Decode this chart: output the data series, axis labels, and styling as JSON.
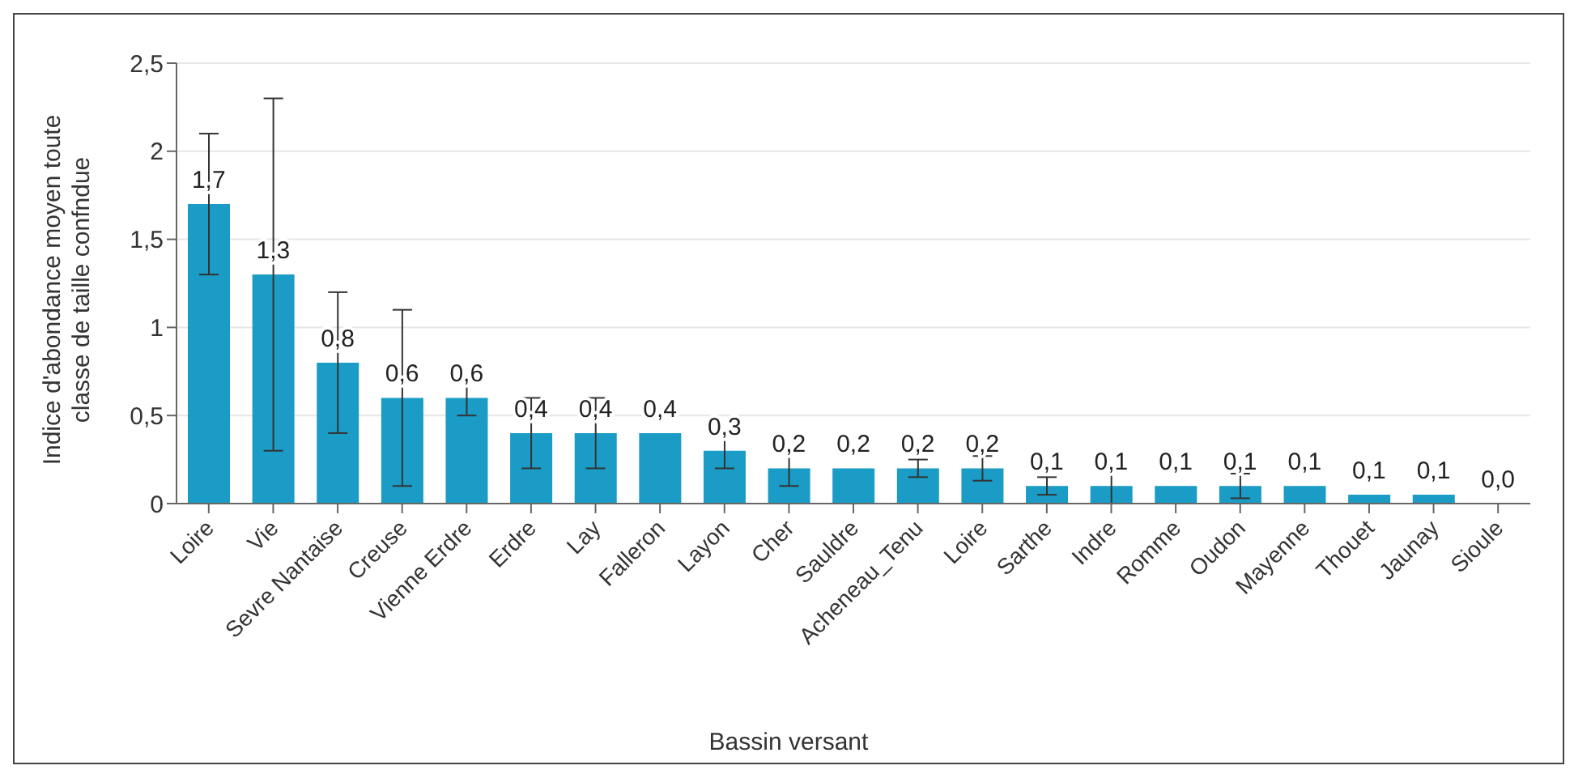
{
  "chart_data": {
    "type": "bar",
    "xlabel": "Bassin versant",
    "ylabel": "Indice d'abondance moyen toute classe de taille confndue",
    "categories": [
      "Loire",
      "Vie",
      "Sevre Nantaise",
      "Creuse",
      "Vienne Erdre",
      "Erdre",
      "Lay",
      "Falleron",
      "Layon",
      "Cher",
      "Sauldre",
      "Acheneau_Tenu",
      "Loire",
      "Sarthe",
      "Indre",
      "Romme",
      "Oudon",
      "Mayenne",
      "Thouet",
      "Jaunay",
      "Sioule"
    ],
    "values": [
      1.7,
      1.3,
      0.8,
      0.6,
      0.6,
      0.4,
      0.4,
      0.4,
      0.3,
      0.2,
      0.2,
      0.2,
      0.2,
      0.1,
      0.1,
      0.1,
      0.1,
      0.1,
      0.05,
      0.05,
      0
    ],
    "errors": [
      0.4,
      1.0,
      0.4,
      0.5,
      0.1,
      0.2,
      0.2,
      null,
      0.1,
      0.1,
      null,
      0.05,
      0.07,
      0.05,
      0.1,
      null,
      0.07,
      null,
      null,
      null,
      null
    ],
    "value_labels": [
      "1,7",
      "1,3",
      "0,8",
      "0,6",
      "0,6",
      "0,4",
      "0,4",
      "0,4",
      "0,3",
      "0,2",
      "0,2",
      "0,2",
      "0,2",
      "0,1",
      "0,1",
      "0,1",
      "0,1",
      "0,1",
      "0,1",
      "0,1",
      "0,0"
    ],
    "color": "#1a9cc6",
    "ylim": [
      0,
      2.5
    ],
    "yticks": [
      0,
      {
        "value": 0.5,
        "label": "0,5"
      },
      1,
      {
        "value": 1.5,
        "label": "1,5"
      },
      2,
      {
        "value": 2.5,
        "label": "2,5"
      }
    ],
    "grid": "y"
  }
}
